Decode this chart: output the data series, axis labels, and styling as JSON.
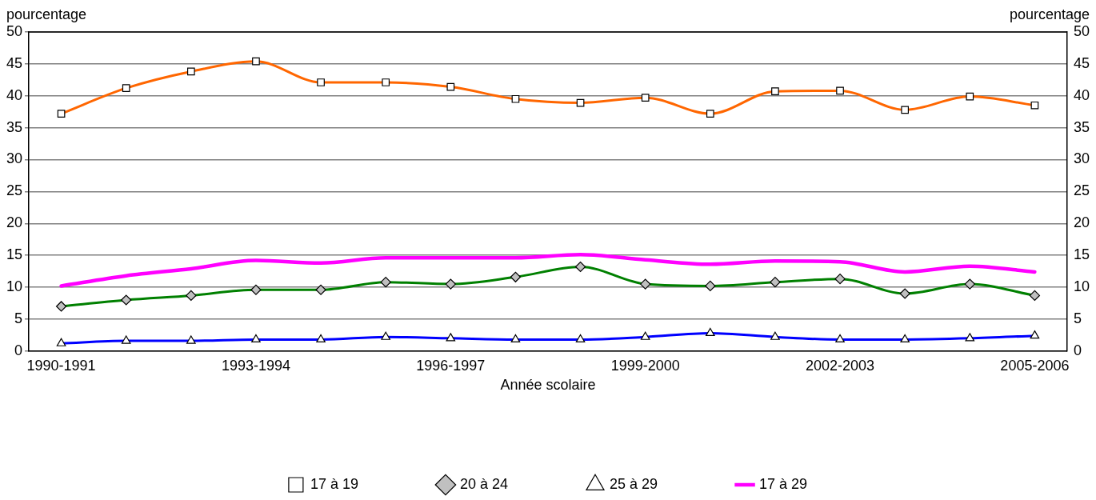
{
  "chart_data": {
    "type": "line",
    "xlabel": "Année scolaire",
    "ylabel": "pourcentage",
    "y2label": "pourcentage",
    "categories": [
      "1990-1991",
      null,
      null,
      "1993-1994",
      null,
      null,
      "1996-1997",
      null,
      null,
      "1999-2000",
      null,
      null,
      "2002-2003",
      null,
      null,
      "2005-2006"
    ],
    "series": [
      {
        "name": "17 à 19",
        "color": "#ff6600",
        "marker": "square",
        "values": [
          37.2,
          41.2,
          43.8,
          45.4,
          42.1,
          42.1,
          41.4,
          39.5,
          38.9,
          39.7,
          37.2,
          40.7,
          40.8,
          37.8,
          39.9,
          38.5
        ]
      },
      {
        "name": "20 à 24",
        "color": "#008000",
        "marker": "diamond",
        "values": [
          7.0,
          8.0,
          8.7,
          9.6,
          9.6,
          10.8,
          10.5,
          11.6,
          13.2,
          10.5,
          10.2,
          10.8,
          11.3,
          9.0,
          10.5,
          8.7
        ]
      },
      {
        "name": "25 à 29",
        "color": "#0000ff",
        "marker": "triangle",
        "values": [
          1.2,
          1.6,
          1.6,
          1.8,
          1.8,
          2.2,
          2.0,
          1.8,
          1.8,
          2.2,
          2.8,
          2.2,
          1.8,
          1.8,
          2.0,
          2.4
        ]
      },
      {
        "name": "17 à 29",
        "color": "#ff00ff",
        "marker": "none",
        "values": [
          10.2,
          11.8,
          12.9,
          14.2,
          13.8,
          14.6,
          14.6,
          14.6,
          15.1,
          14.3,
          13.6,
          14.1,
          14.0,
          12.4,
          13.3,
          12.4
        ]
      }
    ],
    "ylim": [
      0,
      50
    ],
    "yticks": [
      0,
      5,
      10,
      15,
      20,
      25,
      30,
      35,
      40,
      45,
      50
    ],
    "y2lim": [
      0,
      50
    ],
    "y2ticks": [
      0,
      5,
      10,
      15,
      20,
      25,
      30,
      35,
      40,
      45,
      50
    ],
    "grid": "y",
    "legend": "bottom",
    "line_style": "solid"
  }
}
